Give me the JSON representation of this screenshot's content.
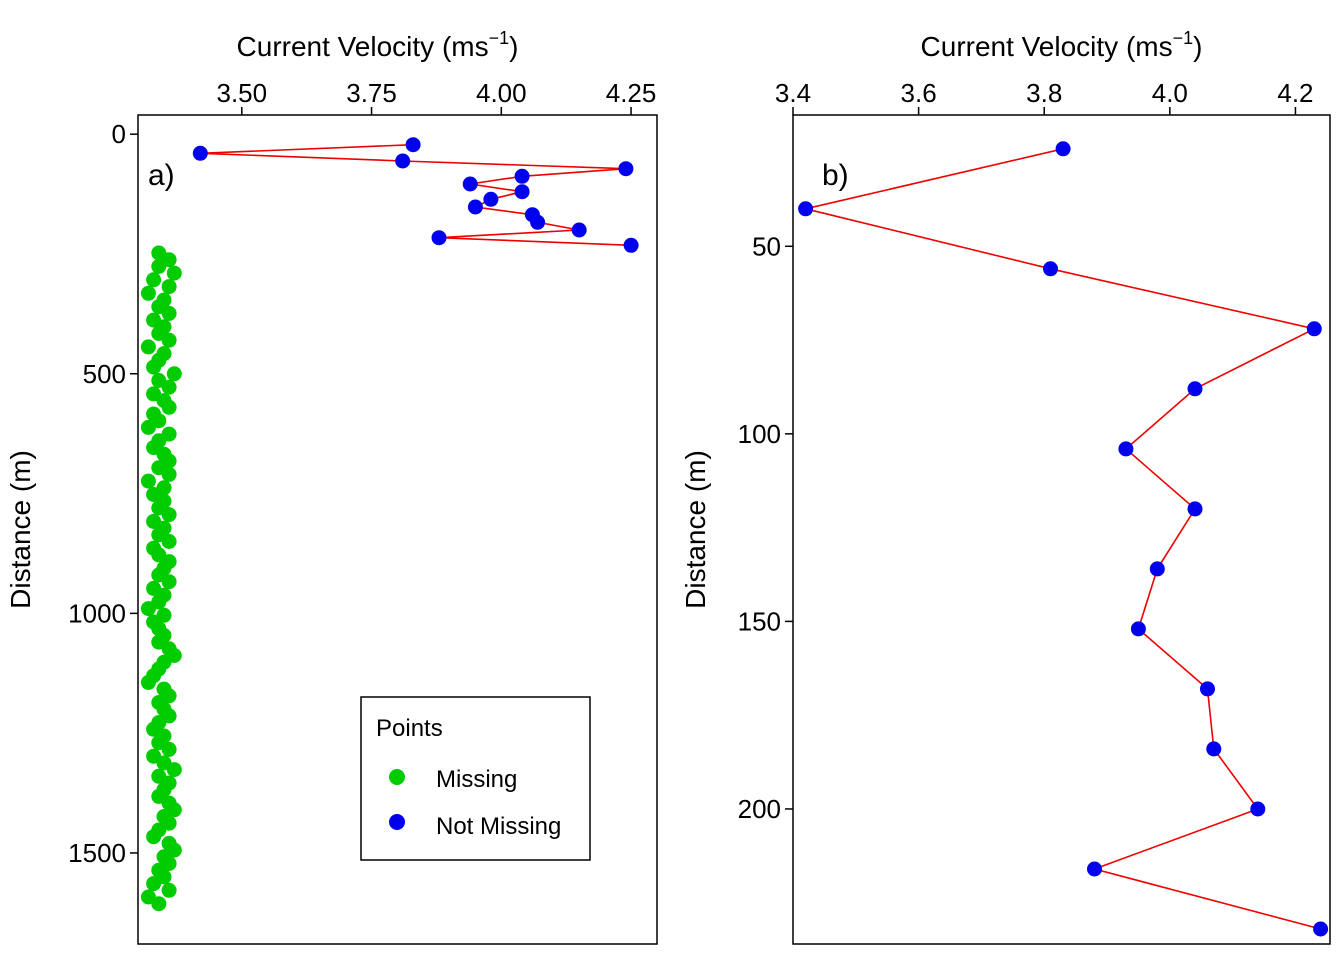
{
  "colors": {
    "missing": "#00cc00",
    "not_missing": "#0000ee",
    "line": "#ee0000",
    "frame": "#000000"
  },
  "legend": {
    "title": "Points",
    "items": [
      {
        "label": "Missing",
        "color": "#00cc00"
      },
      {
        "label": "Not Missing",
        "color": "#0000ee"
      }
    ],
    "placement": "bottom-right of panel a"
  },
  "chart_data": [
    {
      "type": "scatter",
      "panel_label": "a)",
      "xlabel": "Current Velocity (ms",
      "xlabel_sup": "−1",
      "xlabel_close": ")",
      "ylabel": "Distance (m)",
      "x_axis_position": "top",
      "y_reversed": true,
      "xlim": [
        3.3,
        4.3
      ],
      "ylim": [
        1690,
        -40
      ],
      "xticks": [
        3.5,
        3.75,
        4.0,
        4.25
      ],
      "xtick_labels": [
        "3.50",
        "3.75",
        "4.00",
        "4.25"
      ],
      "yticks": [
        0,
        500,
        1000,
        1500
      ],
      "ytick_labels": [
        "0",
        "500",
        "1000",
        "1500"
      ],
      "grid": false,
      "series": [
        {
          "name": "Not Missing",
          "connected": true,
          "points": [
            [
              3.83,
              22
            ],
            [
              3.42,
              40
            ],
            [
              3.81,
              56
            ],
            [
              4.24,
              72
            ],
            [
              4.04,
              88
            ],
            [
              3.94,
              104
            ],
            [
              4.04,
              120
            ],
            [
              3.98,
              136
            ],
            [
              3.95,
              152
            ],
            [
              4.06,
              168
            ],
            [
              4.07,
              184
            ],
            [
              4.15,
              200
            ],
            [
              3.88,
              216
            ],
            [
              4.25,
              232
            ]
          ]
        },
        {
          "name": "Missing",
          "connected": false,
          "points": [
            [
              3.34,
              248
            ],
            [
              3.36,
              262
            ],
            [
              3.34,
              276
            ],
            [
              3.37,
              290
            ],
            [
              3.33,
              304
            ],
            [
              3.36,
              318
            ],
            [
              3.32,
              332
            ],
            [
              3.35,
              346
            ],
            [
              3.34,
              360
            ],
            [
              3.36,
              374
            ],
            [
              3.33,
              388
            ],
            [
              3.35,
              402
            ],
            [
              3.34,
              416
            ],
            [
              3.36,
              430
            ],
            [
              3.32,
              444
            ],
            [
              3.35,
              458
            ],
            [
              3.34,
              472
            ],
            [
              3.33,
              486
            ],
            [
              3.37,
              500
            ],
            [
              3.34,
              514
            ],
            [
              3.36,
              528
            ],
            [
              3.33,
              542
            ],
            [
              3.35,
              556
            ],
            [
              3.36,
              570
            ],
            [
              3.33,
              584
            ],
            [
              3.34,
              598
            ],
            [
              3.32,
              612
            ],
            [
              3.36,
              626
            ],
            [
              3.34,
              640
            ],
            [
              3.33,
              654
            ],
            [
              3.35,
              668
            ],
            [
              3.36,
              682
            ],
            [
              3.34,
              696
            ],
            [
              3.36,
              710
            ],
            [
              3.32,
              724
            ],
            [
              3.35,
              738
            ],
            [
              3.33,
              752
            ],
            [
              3.35,
              766
            ],
            [
              3.34,
              780
            ],
            [
              3.36,
              794
            ],
            [
              3.33,
              808
            ],
            [
              3.35,
              822
            ],
            [
              3.34,
              836
            ],
            [
              3.36,
              850
            ],
            [
              3.33,
              864
            ],
            [
              3.34,
              878
            ],
            [
              3.36,
              892
            ],
            [
              3.35,
              906
            ],
            [
              3.34,
              920
            ],
            [
              3.36,
              934
            ],
            [
              3.33,
              948
            ],
            [
              3.35,
              962
            ],
            [
              3.34,
              976
            ],
            [
              3.32,
              990
            ],
            [
              3.35,
              1004
            ],
            [
              3.33,
              1018
            ],
            [
              3.34,
              1032
            ],
            [
              3.35,
              1046
            ],
            [
              3.34,
              1060
            ],
            [
              3.36,
              1074
            ],
            [
              3.37,
              1088
            ],
            [
              3.35,
              1102
            ],
            [
              3.34,
              1116
            ],
            [
              3.33,
              1130
            ],
            [
              3.32,
              1144
            ],
            [
              3.35,
              1158
            ],
            [
              3.36,
              1172
            ],
            [
              3.34,
              1186
            ],
            [
              3.35,
              1200
            ],
            [
              3.36,
              1214
            ],
            [
              3.34,
              1228
            ],
            [
              3.33,
              1242
            ],
            [
              3.35,
              1256
            ],
            [
              3.34,
              1270
            ],
            [
              3.36,
              1284
            ],
            [
              3.33,
              1298
            ],
            [
              3.35,
              1312
            ],
            [
              3.37,
              1326
            ],
            [
              3.34,
              1340
            ],
            [
              3.36,
              1354
            ],
            [
              3.35,
              1368
            ],
            [
              3.34,
              1382
            ],
            [
              3.36,
              1396
            ],
            [
              3.37,
              1410
            ],
            [
              3.35,
              1424
            ],
            [
              3.36,
              1438
            ],
            [
              3.34,
              1452
            ],
            [
              3.33,
              1466
            ],
            [
              3.36,
              1480
            ],
            [
              3.37,
              1494
            ],
            [
              3.35,
              1508
            ],
            [
              3.36,
              1522
            ],
            [
              3.34,
              1536
            ],
            [
              3.35,
              1550
            ],
            [
              3.33,
              1564
            ],
            [
              3.36,
              1578
            ],
            [
              3.32,
              1592
            ],
            [
              3.34,
              1606
            ]
          ]
        }
      ]
    },
    {
      "type": "line",
      "panel_label": "b)",
      "xlabel": "Current Velocity (ms",
      "xlabel_sup": "−1",
      "xlabel_close": ")",
      "ylabel": "Distance (m)",
      "x_axis_position": "top",
      "y_reversed": true,
      "xlim": [
        3.4,
        4.255
      ],
      "ylim": [
        236,
        15
      ],
      "xticks": [
        3.4,
        3.6,
        3.8,
        4.0,
        4.2
      ],
      "xtick_labels": [
        "3.4",
        "3.6",
        "3.8",
        "4.0",
        "4.2"
      ],
      "yticks": [
        50,
        100,
        150,
        200
      ],
      "ytick_labels": [
        "50",
        "100",
        "150",
        "200"
      ],
      "grid": false,
      "series": [
        {
          "name": "Not Missing",
          "connected": true,
          "points": [
            [
              3.83,
              24
            ],
            [
              3.42,
              40
            ],
            [
              3.81,
              56
            ],
            [
              4.23,
              72
            ],
            [
              4.04,
              88
            ],
            [
              3.93,
              104
            ],
            [
              4.04,
              120
            ],
            [
              3.98,
              136
            ],
            [
              3.95,
              152
            ],
            [
              4.06,
              168
            ],
            [
              4.07,
              184
            ],
            [
              4.14,
              200
            ],
            [
              3.88,
              216
            ],
            [
              4.24,
              232
            ]
          ]
        }
      ]
    }
  ]
}
